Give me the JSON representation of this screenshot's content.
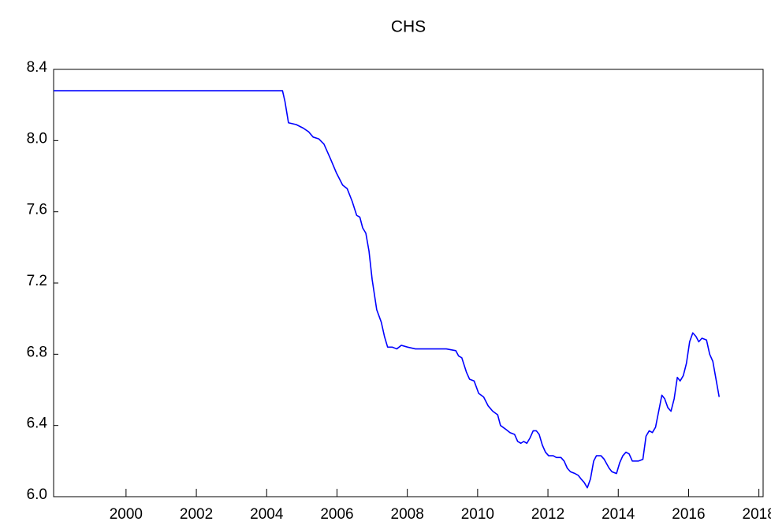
{
  "chart_data": {
    "type": "line",
    "title": "CHS",
    "x": [
      1997.94,
      2000,
      2002,
      2004,
      2004.45,
      2004.52,
      2004.62,
      2004.84,
      2005.04,
      2005.19,
      2005.32,
      2005.48,
      2005.63,
      2005.81,
      2005.98,
      2006.16,
      2006.29,
      2006.43,
      2006.56,
      2006.65,
      2006.73,
      2006.82,
      2006.91,
      2007.0,
      2007.13,
      2007.26,
      2007.35,
      2007.44,
      2007.57,
      2007.7,
      2007.83,
      2008.01,
      2008.23,
      2008.45,
      2008.67,
      2008.89,
      2009.11,
      2009.38,
      2009.46,
      2009.55,
      2009.68,
      2009.77,
      2009.9,
      2010.03,
      2010.17,
      2010.3,
      2010.43,
      2010.57,
      2010.65,
      2010.79,
      2010.92,
      2011.05,
      2011.14,
      2011.23,
      2011.31,
      2011.4,
      2011.49,
      2011.58,
      2011.67,
      2011.75,
      2011.84,
      2011.93,
      2012.02,
      2012.15,
      2012.24,
      2012.37,
      2012.46,
      2012.55,
      2012.64,
      2012.77,
      2012.86,
      2012.94,
      2013.03,
      2013.12,
      2013.21,
      2013.3,
      2013.38,
      2013.51,
      2013.6,
      2013.74,
      2013.82,
      2013.95,
      2014.04,
      2014.13,
      2014.22,
      2014.31,
      2014.4,
      2014.57,
      2014.7,
      2014.79,
      2014.88,
      2014.97,
      2015.06,
      2015.15,
      2015.24,
      2015.32,
      2015.41,
      2015.5,
      2015.59,
      2015.68,
      2015.76,
      2015.85,
      2015.94,
      2016.03,
      2016.12,
      2016.21,
      2016.29,
      2016.38,
      2016.51,
      2016.6,
      2016.69,
      2016.78,
      2016.87
    ],
    "series": [
      {
        "name": "CHS",
        "color": "#0000ff",
        "values": [
          8.28,
          8.28,
          8.28,
          8.28,
          8.28,
          8.22,
          8.1,
          8.09,
          8.07,
          8.05,
          8.02,
          8.01,
          7.98,
          7.9,
          7.82,
          7.75,
          7.73,
          7.66,
          7.58,
          7.57,
          7.51,
          7.48,
          7.38,
          7.22,
          7.05,
          6.98,
          6.9,
          6.84,
          6.84,
          6.83,
          6.85,
          6.84,
          6.83,
          6.83,
          6.83,
          6.83,
          6.83,
          6.82,
          6.79,
          6.78,
          6.7,
          6.66,
          6.65,
          6.58,
          6.56,
          6.51,
          6.48,
          6.46,
          6.4,
          6.38,
          6.36,
          6.35,
          6.31,
          6.3,
          6.31,
          6.3,
          6.33,
          6.37,
          6.37,
          6.35,
          6.29,
          6.25,
          6.23,
          6.23,
          6.22,
          6.22,
          6.2,
          6.16,
          6.14,
          6.13,
          6.12,
          6.1,
          6.08,
          6.05,
          6.1,
          6.2,
          6.23,
          6.23,
          6.21,
          6.16,
          6.14,
          6.13,
          6.19,
          6.23,
          6.25,
          6.24,
          6.2,
          6.2,
          6.21,
          6.34,
          6.37,
          6.36,
          6.39,
          6.48,
          6.57,
          6.55,
          6.5,
          6.48,
          6.55,
          6.67,
          6.65,
          6.68,
          6.75,
          6.87,
          6.92,
          6.9,
          6.87,
          6.89,
          6.88,
          6.8,
          6.76,
          6.66,
          6.56
        ]
      }
    ],
    "xlim": [
      1997.94,
      2018.12
    ],
    "xticks": [
      2000,
      2002,
      2004,
      2006,
      2008,
      2010,
      2012,
      2014,
      2016,
      2018
    ],
    "ylim": [
      6.0,
      8.4
    ],
    "yticks": [
      {
        "value": 6.0,
        "label": "6.0"
      },
      6.4,
      6.8,
      7.2,
      7.6,
      {
        "value": 8.0,
        "label": "8.0"
      },
      8.4
    ],
    "grid": false
  }
}
